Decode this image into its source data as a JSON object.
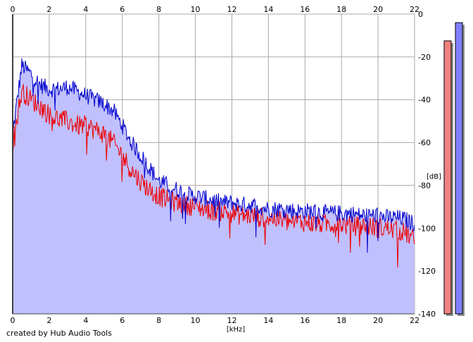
{
  "chart_data": {
    "type": "area",
    "xlabel": "[kHz]",
    "ylabel": "[dB]",
    "xlim": [
      0,
      22
    ],
    "ylim": [
      -140,
      0
    ],
    "x_ticks": [
      "0",
      "2",
      "4",
      "6",
      "8",
      "10",
      "12",
      "14",
      "16",
      "18",
      "20",
      "22"
    ],
    "y_ticks": [
      "0",
      "-20",
      "-40",
      "-60",
      "-80",
      "-100",
      "-120",
      "-140"
    ],
    "grid": true,
    "fill_color": "#c0c0ff",
    "series": [
      {
        "color": "#0000cc",
        "x": [
          0,
          0.5,
          1,
          1.5,
          2,
          2.5,
          3,
          3.5,
          4,
          4.5,
          5,
          5.5,
          6,
          6.5,
          7,
          7.5,
          8,
          8.5,
          9,
          9.5,
          10,
          10.5,
          11,
          11.5,
          12,
          12.5,
          13,
          13.5,
          14,
          14.5,
          15,
          15.5,
          16,
          16.5,
          17,
          17.5,
          18,
          18.5,
          19,
          19.5,
          20,
          20.5,
          21,
          21.5,
          22
        ],
        "y": [
          -56,
          -24,
          -28,
          -33,
          -35,
          -35,
          -34,
          -36,
          -38,
          -40,
          -42,
          -45,
          -52,
          -60,
          -66,
          -72,
          -78,
          -80,
          -82,
          -84,
          -85,
          -86,
          -87,
          -88,
          -88,
          -89,
          -89,
          -90,
          -91,
          -91,
          -91,
          -92,
          -92,
          -92,
          -93,
          -93,
          -93,
          -93,
          -94,
          -94,
          -94,
          -95,
          -95,
          -96,
          -98
        ]
      },
      {
        "color": "#ee0000",
        "x": [
          0,
          0.5,
          1,
          1.5,
          2,
          2.5,
          3,
          3.5,
          4,
          4.5,
          5,
          5.5,
          6,
          6.5,
          7,
          7.5,
          8,
          8.5,
          9,
          9.5,
          10,
          10.5,
          11,
          11.5,
          12,
          12.5,
          13,
          13.5,
          14,
          14.5,
          15,
          15.5,
          16,
          16.5,
          17,
          17.5,
          18,
          18.5,
          19,
          19.5,
          20,
          20.5,
          21,
          21.5,
          22
        ],
        "y": [
          -60,
          -36,
          -40,
          -43,
          -47,
          -49,
          -50,
          -52,
          -52,
          -54,
          -56,
          -60,
          -66,
          -73,
          -78,
          -82,
          -85,
          -87,
          -88,
          -89,
          -90,
          -91,
          -92,
          -92,
          -93,
          -94,
          -94,
          -95,
          -95,
          -96,
          -97,
          -97,
          -97,
          -98,
          -98,
          -98,
          -98,
          -99,
          -99,
          -99,
          -100,
          -100,
          -101,
          -102,
          -106
        ]
      }
    ],
    "level_meters": [
      {
        "color": "#f08080",
        "level_db": -12.5
      },
      {
        "color": "#8080ff",
        "level_db": -4
      }
    ]
  },
  "footer": {
    "credit": "created by Hub Audio Tools"
  }
}
